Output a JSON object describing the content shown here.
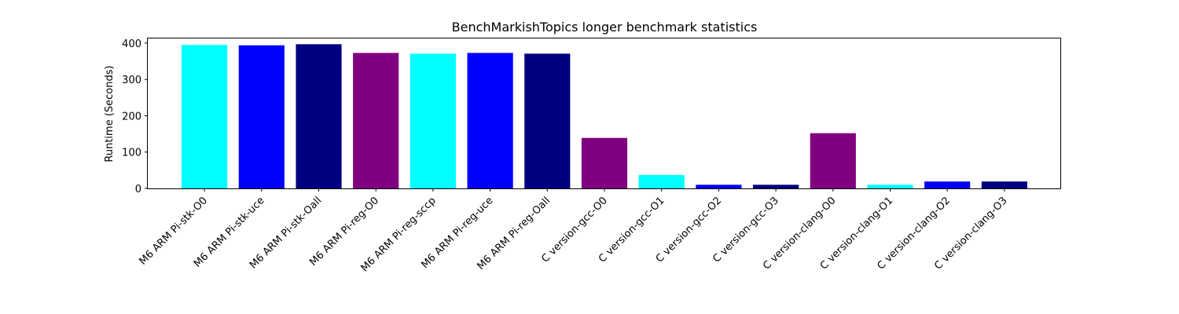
{
  "chart_data": {
    "type": "bar",
    "title": "BenchMarkishTopics longer benchmark statistics",
    "xlabel": "",
    "ylabel": "Runtime (Seconds)",
    "ylim": [
      0,
      415
    ],
    "yticks": [
      0,
      100,
      200,
      300,
      400
    ],
    "grid": false,
    "categories": [
      "M6 ARM Pi-stk-O0",
      "M6 ARM Pi-stk-uce",
      "M6 ARM Pi-stk-Oall",
      "M6 ARM Pi-reg-O0",
      "M6 ARM Pi-reg-sccp",
      "M6 ARM Pi-reg-uce",
      "M6 ARM Pi-reg-Oall",
      "C version-gcc-O0",
      "C version-gcc-O1",
      "C version-gcc-O2",
      "C version-gcc-O3",
      "C version-clang-O0",
      "C version-clang-O1",
      "C version-clang-O2",
      "C version-clang-O3"
    ],
    "values": [
      395,
      394,
      397,
      373,
      371,
      373,
      371,
      139,
      37,
      10,
      10,
      152,
      10,
      19,
      19
    ],
    "colors": [
      "#00ffff",
      "#0000ff",
      "#000080",
      "#800080",
      "#00ffff",
      "#0000ff",
      "#000080",
      "#800080",
      "#00ffff",
      "#0000ff",
      "#000080",
      "#800080",
      "#00ffff",
      "#0000ff",
      "#000080"
    ]
  }
}
